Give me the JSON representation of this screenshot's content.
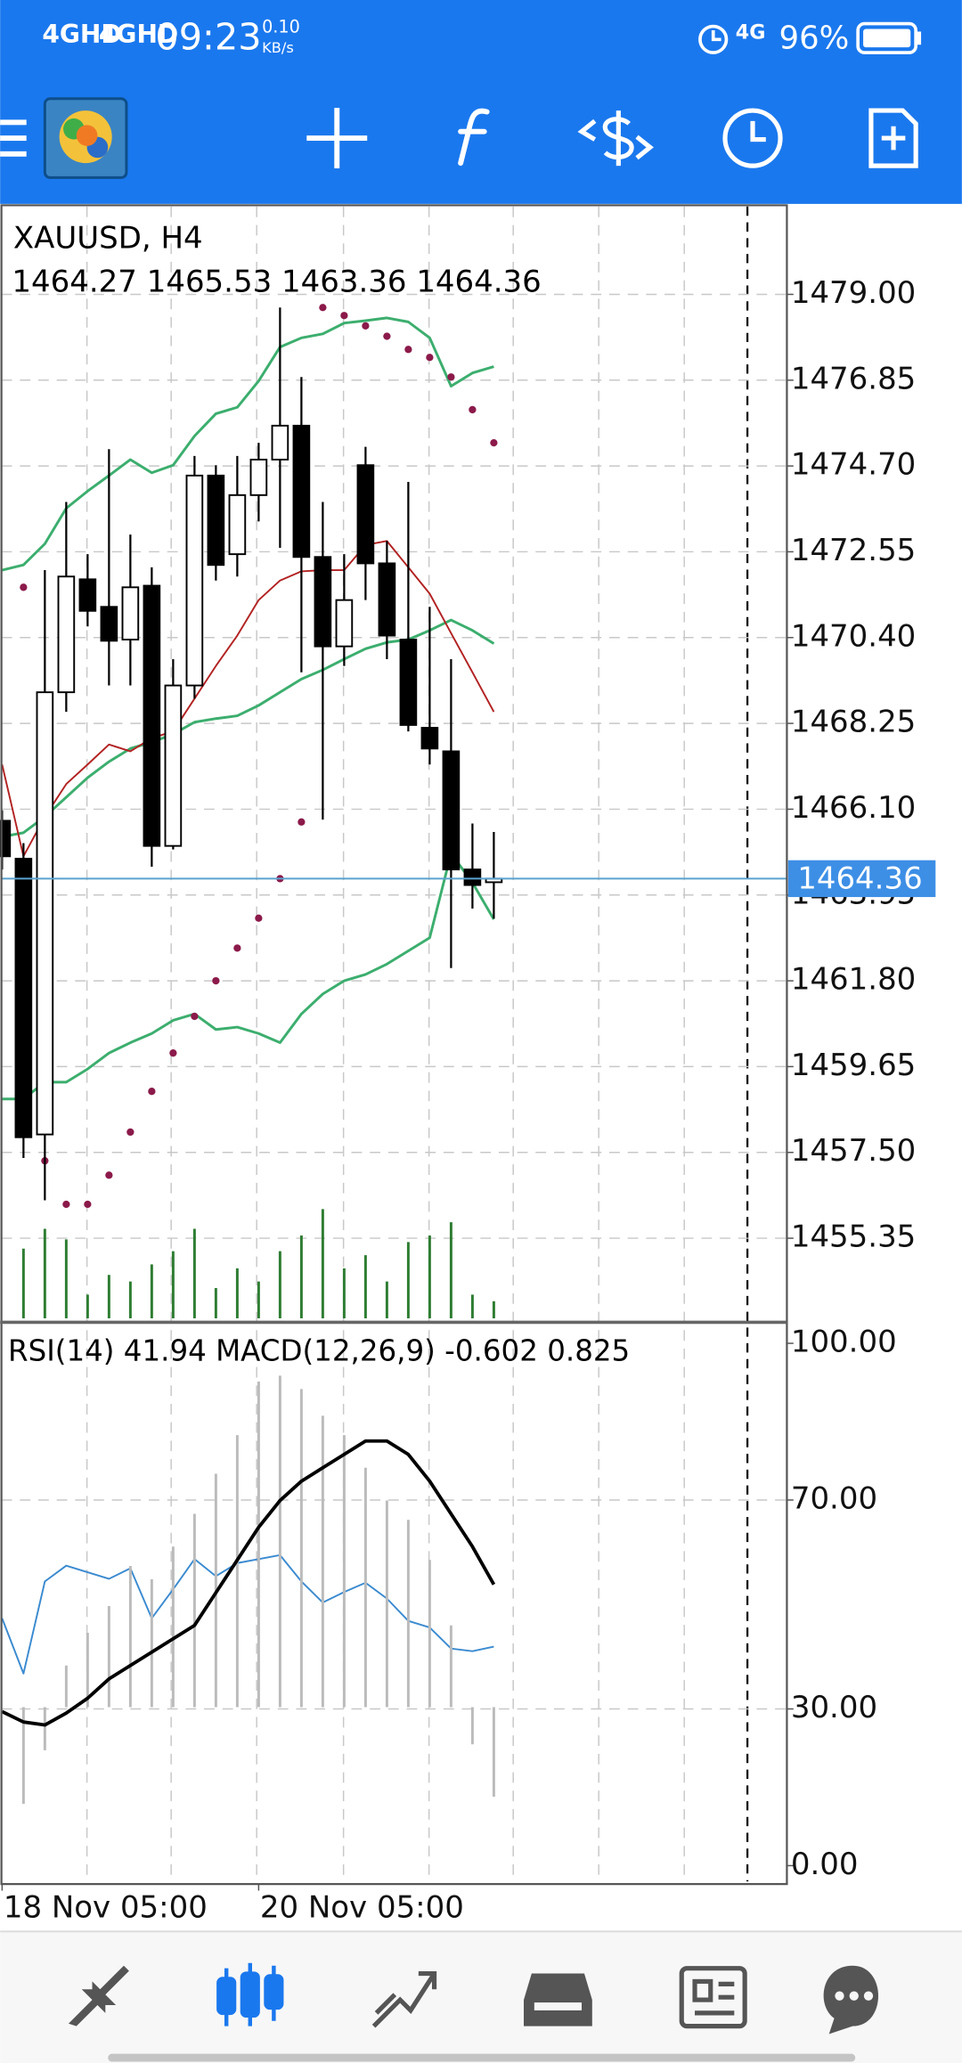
{
  "status_bar": {
    "signal_1": "4GHD",
    "signal_2": "4GHD",
    "time": "09:23",
    "speed": "0.10",
    "speed_unit": "KB/s",
    "network": "4G",
    "battery": "96%"
  },
  "chart_data": [
    {
      "type": "candlestick",
      "title": "XAUUSD, H4",
      "categories": [
        "18 Nov 05:00",
        null,
        null,
        null,
        null,
        null,
        null,
        null,
        null,
        null,
        null,
        null,
        "20 Nov 05:00",
        null,
        null,
        null,
        null,
        null,
        null,
        null,
        null,
        null,
        null,
        null
      ],
      "open": [
        1465.81,
        1464.86,
        1457.95,
        1469.03,
        1471.86,
        1471.17,
        1470.35,
        1471.7,
        1465.18,
        1469.2,
        1474.46,
        1472.49,
        1473.97,
        1474.86,
        1475.71,
        1472.42,
        1470.18,
        1474.72,
        1472.26,
        1470.35,
        1468.14,
        1467.55,
        1464.59,
        1464.27
      ],
      "high": [
        1466.07,
        1465.25,
        1472.09,
        1473.8,
        1472.49,
        1475.12,
        1472.98,
        1472.16,
        1469.86,
        1474.95,
        1474.72,
        1474.95,
        1475.28,
        1478.67,
        1476.93,
        1473.8,
        1472.49,
        1475.18,
        1472.82,
        1474.3,
        1471.17,
        1469.86,
        1465.74,
        1465.53
      ],
      "low": [
        1464.59,
        1457.36,
        1456.3,
        1468.54,
        1470.68,
        1469.2,
        1469.2,
        1464.66,
        1465.09,
        1468.87,
        1471.83,
        1471.93,
        1473.31,
        1472.65,
        1469.53,
        1465.84,
        1469.69,
        1471.34,
        1469.86,
        1468.05,
        1467.22,
        1462.12,
        1463.61,
        1463.36
      ],
      "close": [
        1464.92,
        1457.88,
        1469.03,
        1471.93,
        1471.07,
        1470.32,
        1471.66,
        1465.18,
        1469.2,
        1474.46,
        1472.22,
        1473.97,
        1474.86,
        1475.71,
        1472.42,
        1470.18,
        1471.34,
        1472.26,
        1470.45,
        1468.21,
        1467.62,
        1464.59,
        1464.2,
        1464.36
      ],
      "up_color": "#ffffff",
      "down_color": "#000000",
      "price_line_color": "#5ba3cf",
      "price_label_color": "#3d8fe6",
      "ylim": [
        1453.31,
        1481.2
      ],
      "yticks": [
        {
          "value": 1479,
          "label": "1479.00"
        },
        1476.85,
        {
          "value": 1474.7,
          "label": "1474.70"
        },
        1472.55,
        {
          "value": 1470.4,
          "label": "1470.40"
        },
        1468.25,
        {
          "value": 1466.1,
          "label": "1466.10"
        },
        1463.95,
        {
          "value": 1461.8,
          "label": "1461.80"
        },
        1459.65,
        {
          "value": 1457.5,
          "label": "1457.50"
        },
        1455.35
      ],
      "grid": true,
      "series": [
        {
          "color": "#3cae6e",
          "values": [
            1472.09,
            1472.22,
            1472.75,
            1473.64,
            1474.07,
            1474.46,
            1474.86,
            1474.53,
            1474.72,
            1475.45,
            1476.01,
            1476.17,
            1476.83,
            1477.68,
            1477.91,
            1478.01,
            1478.28,
            1478.34,
            1478.41,
            1478.31,
            1477.91,
            1476.7,
            1477.03,
            1477.19
          ]
        },
        {
          "color": "#3cae6e",
          "values": [
            1465.41,
            1465.51,
            1465.91,
            1466.4,
            1466.89,
            1467.29,
            1467.62,
            1467.78,
            1467.98,
            1468.28,
            1468.37,
            1468.44,
            1468.7,
            1469.03,
            1469.36,
            1469.59,
            1469.86,
            1470.12,
            1470.28,
            1470.35,
            1470.58,
            1470.84,
            1470.58,
            1470.25
          ]
        },
        {
          "color": "#3cae6e",
          "values": [
            1458.84,
            1458.84,
            1459.26,
            1459.26,
            1459.59,
            1459.99,
            1460.25,
            1460.48,
            1460.81,
            1460.97,
            1460.58,
            1460.64,
            1460.48,
            1460.25,
            1460.97,
            1461.47,
            1461.8,
            1461.96,
            1462.22,
            1462.55,
            1462.88,
            1464.99,
            1464.26,
            1463.34
          ]
        },
        {
          "color": "#b22222",
          "values": [
            1467.22,
            1464.92,
            1465.91,
            1466.73,
            1467.22,
            1467.72,
            1467.55,
            1467.88,
            1468.05,
            1468.87,
            1469.69,
            1470.45,
            1471.34,
            1471.83,
            1472.06,
            1472.09,
            1472.09,
            1472.72,
            1472.82,
            1472.16,
            1471.5,
            1470.51,
            1469.53,
            1468.54
          ]
        },
        {
          "color": "#8b1a4a",
          "style": "dots",
          "values": [
            null,
            1471.66,
            1457.29,
            1456.2,
            1456.2,
            1456.93,
            1458.01,
            1459.03,
            1459.99,
            1460.91,
            1461.8,
            1462.62,
            1463.37,
            1464.36,
            1465.78,
            1478.67,
            1478.47,
            1478.21,
            1477.95,
            1477.62,
            1477.42,
            1476.93,
            1476.11,
            1475.28
          ]
        }
      ],
      "volume": {
        "color": "#2e7d32",
        "values": [
          null,
          53,
          68,
          60,
          18,
          33,
          28,
          41,
          51,
          68,
          23,
          38,
          28,
          51,
          63,
          83,
          38,
          48,
          28,
          58,
          63,
          73,
          18,
          13
        ]
      }
    },
    {
      "type": "indicator",
      "ylim": [
        -3.53,
        103.78
      ],
      "yticks": [
        {
          "value": 100,
          "label": "100.00"
        },
        {
          "value": 70,
          "label": "70.00"
        },
        {
          "value": 30,
          "label": "30.00"
        },
        {
          "value": 0,
          "label": "0.00"
        }
      ],
      "y2lim": [
        -1.19,
        2.58
      ],
      "grid": true,
      "series": [
        {
          "name": "RSI(14)",
          "color": "#3a8ad0",
          "values": [
            47.36,
            36.78,
            54.41,
            57.43,
            56.17,
            54.91,
            56.93,
            47.36,
            52.9,
            58.69,
            55.42,
            57.93,
            58.69,
            59.45,
            54.41,
            50.38,
            52.39,
            54.16,
            51.13,
            46.85,
            45.59,
            41.56,
            41.06,
            41.94
          ]
        },
        {
          "name": "MACD(12,26,9)",
          "color": "#bbbbbb",
          "style": "histogram",
          "axis": "y2",
          "values": [
            null,
            -0.65,
            -0.29,
            0.28,
            0.5,
            0.68,
            0.95,
            0.86,
            1.08,
            1.3,
            1.57,
            1.83,
            2.19,
            2.23,
            2.14,
            1.96,
            1.83,
            1.61,
            1.39,
            1.26,
            0.99,
            0.55,
            -0.25,
            -0.602
          ]
        },
        {
          "color": "#000000",
          "axis": "y2",
          "values": [
            -0.03,
            -0.1,
            -0.12,
            -0.04,
            0.06,
            0.19,
            0.28,
            0.37,
            0.46,
            0.55,
            0.77,
            0.99,
            1.21,
            1.39,
            1.52,
            1.61,
            1.7,
            1.79,
            1.79,
            1.7,
            1.52,
            1.3,
            1.08,
            0.825
          ]
        }
      ]
    }
  ]
}
